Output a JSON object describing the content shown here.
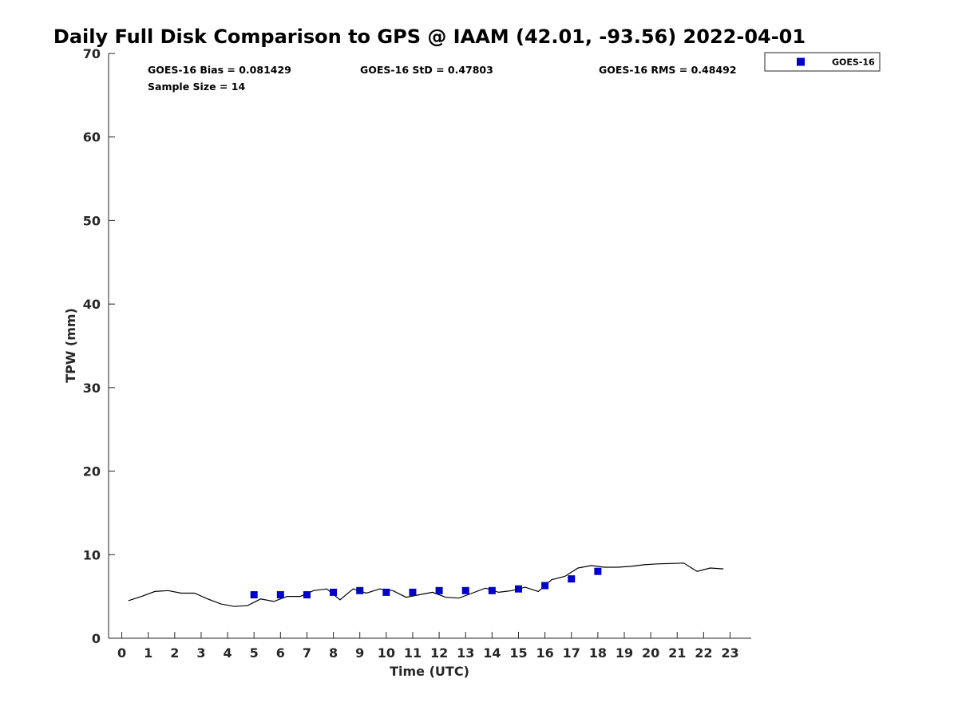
{
  "chart_data": {
    "type": "scatter",
    "title": "Daily Full Disk Comparison to GPS @ IAAM (42.01, -93.56) 2022-04-01",
    "xlabel": "Time (UTC)",
    "ylabel": "TPW (mm)",
    "xlim": [
      -0.5,
      23.8
    ],
    "ylim": [
      0,
      70
    ],
    "xticks": [
      0,
      1,
      2,
      3,
      4,
      5,
      6,
      7,
      8,
      9,
      10,
      11,
      12,
      13,
      14,
      15,
      16,
      17,
      18,
      19,
      20,
      21,
      22,
      23
    ],
    "yticks": [
      0,
      10,
      20,
      30,
      40,
      50,
      60,
      70
    ],
    "stats": {
      "bias": "GOES-16 Bias = 0.081429",
      "std": "GOES-16 StD = 0.47803",
      "rms": "GOES-16 RMS = 0.48492",
      "sample": "Sample Size = 14"
    },
    "legend": {
      "label": "GOES-16",
      "position": "top-right"
    },
    "series": [
      {
        "name": "GOES-16",
        "kind": "markers",
        "color": "#0000cc",
        "x": [
          5,
          6,
          7,
          8,
          9,
          10,
          11,
          12,
          13,
          14,
          15,
          16,
          17,
          18
        ],
        "y": [
          5.2,
          5.2,
          5.2,
          5.5,
          5.7,
          5.5,
          5.5,
          5.7,
          5.7,
          5.7,
          5.9,
          6.3,
          7.1,
          8.0
        ]
      },
      {
        "name": "GPS",
        "kind": "line",
        "color": "#000000",
        "x": [
          0.25,
          0.75,
          1.25,
          1.75,
          2.25,
          2.75,
          3.25,
          3.75,
          4.25,
          4.75,
          5.25,
          5.75,
          6.25,
          6.75,
          7.25,
          7.75,
          8.25,
          8.75,
          9.25,
          9.75,
          10.25,
          10.75,
          11.25,
          11.75,
          12.25,
          12.75,
          13.25,
          13.75,
          14.25,
          14.75,
          15.25,
          15.75,
          16.25,
          16.75,
          17.25,
          17.75,
          18.25,
          18.75,
          19.25,
          19.75,
          20.25,
          20.75,
          21.25,
          21.75,
          22.25,
          22.75
        ],
        "y": [
          4.5,
          5.0,
          5.6,
          5.7,
          5.4,
          5.4,
          4.7,
          4.1,
          3.8,
          3.9,
          4.7,
          4.4,
          5.0,
          5.0,
          5.7,
          5.9,
          4.6,
          5.9,
          5.4,
          5.9,
          5.7,
          4.9,
          5.2,
          5.5,
          4.9,
          4.8,
          5.4,
          6.0,
          5.5,
          5.7,
          6.1,
          5.6,
          7.0,
          7.4,
          8.4,
          8.7,
          8.5,
          8.5,
          8.6,
          8.8,
          8.9,
          8.95,
          9.0,
          8.0,
          8.4,
          8.3
        ]
      }
    ]
  }
}
